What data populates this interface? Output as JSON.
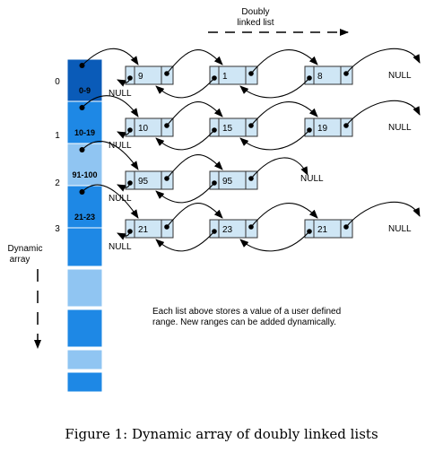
{
  "labels": {
    "top_title_line1": "Doubly",
    "top_title_line2": "linked list",
    "side_label_line1": "Dynamic",
    "side_label_line2": "array",
    "null_text": "NULL",
    "note_line1": "Each list above stores a value of a user defined",
    "note_line2": "range. New ranges can be added dynamically.",
    "caption": "Figure 1: Dynamic array of doubly linked lists"
  },
  "array": {
    "index_labels": [
      "0",
      "1",
      "2",
      "3"
    ],
    "range_labels": [
      "0-9",
      "10-19",
      "91-100",
      "21-23"
    ],
    "cell_colors": [
      "#0a5bb8",
      "#1e88e5",
      "#90c5f2",
      "#1e88e5",
      "#1e88e5",
      "#90c5f2",
      "#1e88e5",
      "#90c5f2",
      "#1e88e5"
    ],
    "empty_cells": 5
  },
  "lists": [
    {
      "values": [
        "9",
        "1",
        "8"
      ],
      "tail": "NULL"
    },
    {
      "values": [
        "10",
        "15",
        "19"
      ],
      "tail": "NULL"
    },
    {
      "values": [
        "95",
        "95"
      ],
      "tail": "NULL"
    },
    {
      "values": [
        "21",
        "23",
        "21"
      ],
      "tail": "NULL"
    }
  ],
  "colors": {
    "node_fill": "#cfe6f5",
    "node_stroke": "#333333",
    "array_stroke": "#ffffff",
    "arrow": "#000000",
    "text": "#000000"
  }
}
